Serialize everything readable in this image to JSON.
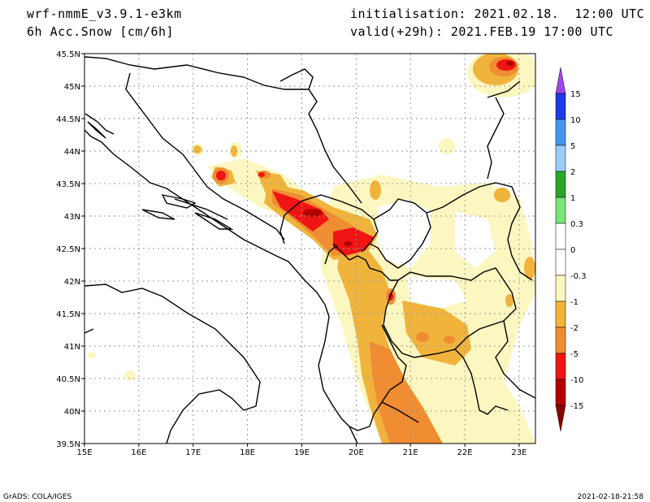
{
  "header": {
    "model": "wrf-nmmE_v3.9.1-e3km",
    "field": "6h Acc.Snow [cm/6h]",
    "init": "initialisation: 2021.02.18.  12:00 UTC",
    "valid": "valid(+29h): 2021.FEB.19 17:00 UTC"
  },
  "map": {
    "lon_labels": [
      "15E",
      "16E",
      "17E",
      "18E",
      "19E",
      "20E",
      "21E",
      "22E",
      "23E"
    ],
    "lat_labels": [
      "45.5N",
      "45N",
      "44.5N",
      "44N",
      "43.5N",
      "43N",
      "42.5N",
      "42N",
      "41.5N",
      "41N",
      "40.5N",
      "40N",
      "39.5N"
    ],
    "lon_range": [
      15,
      23.3
    ],
    "lat_range": [
      39.5,
      45.5
    ],
    "gridlines": "dotted"
  },
  "legend": {
    "labels": [
      "15",
      "10",
      "5",
      "2",
      "1",
      "0.3",
      "0",
      "-0.3",
      "-1",
      "-2",
      "-5",
      "-10",
      "-15"
    ],
    "colors": [
      "#1e3ce6",
      "#4696ee",
      "#9acdf6",
      "#2aa52a",
      "#78e678",
      "#ffffff",
      "#ffffff",
      "#fcf6c0",
      "#f0b43c",
      "#f08c32",
      "#f01414",
      "#b40000"
    ],
    "top_arrow_color": "#a046f0",
    "bottom_arrow_color": "#8c0000"
  },
  "footer": {
    "left": "GrADS: COLA/IGES",
    "right": "2021-02-18-21:58"
  }
}
